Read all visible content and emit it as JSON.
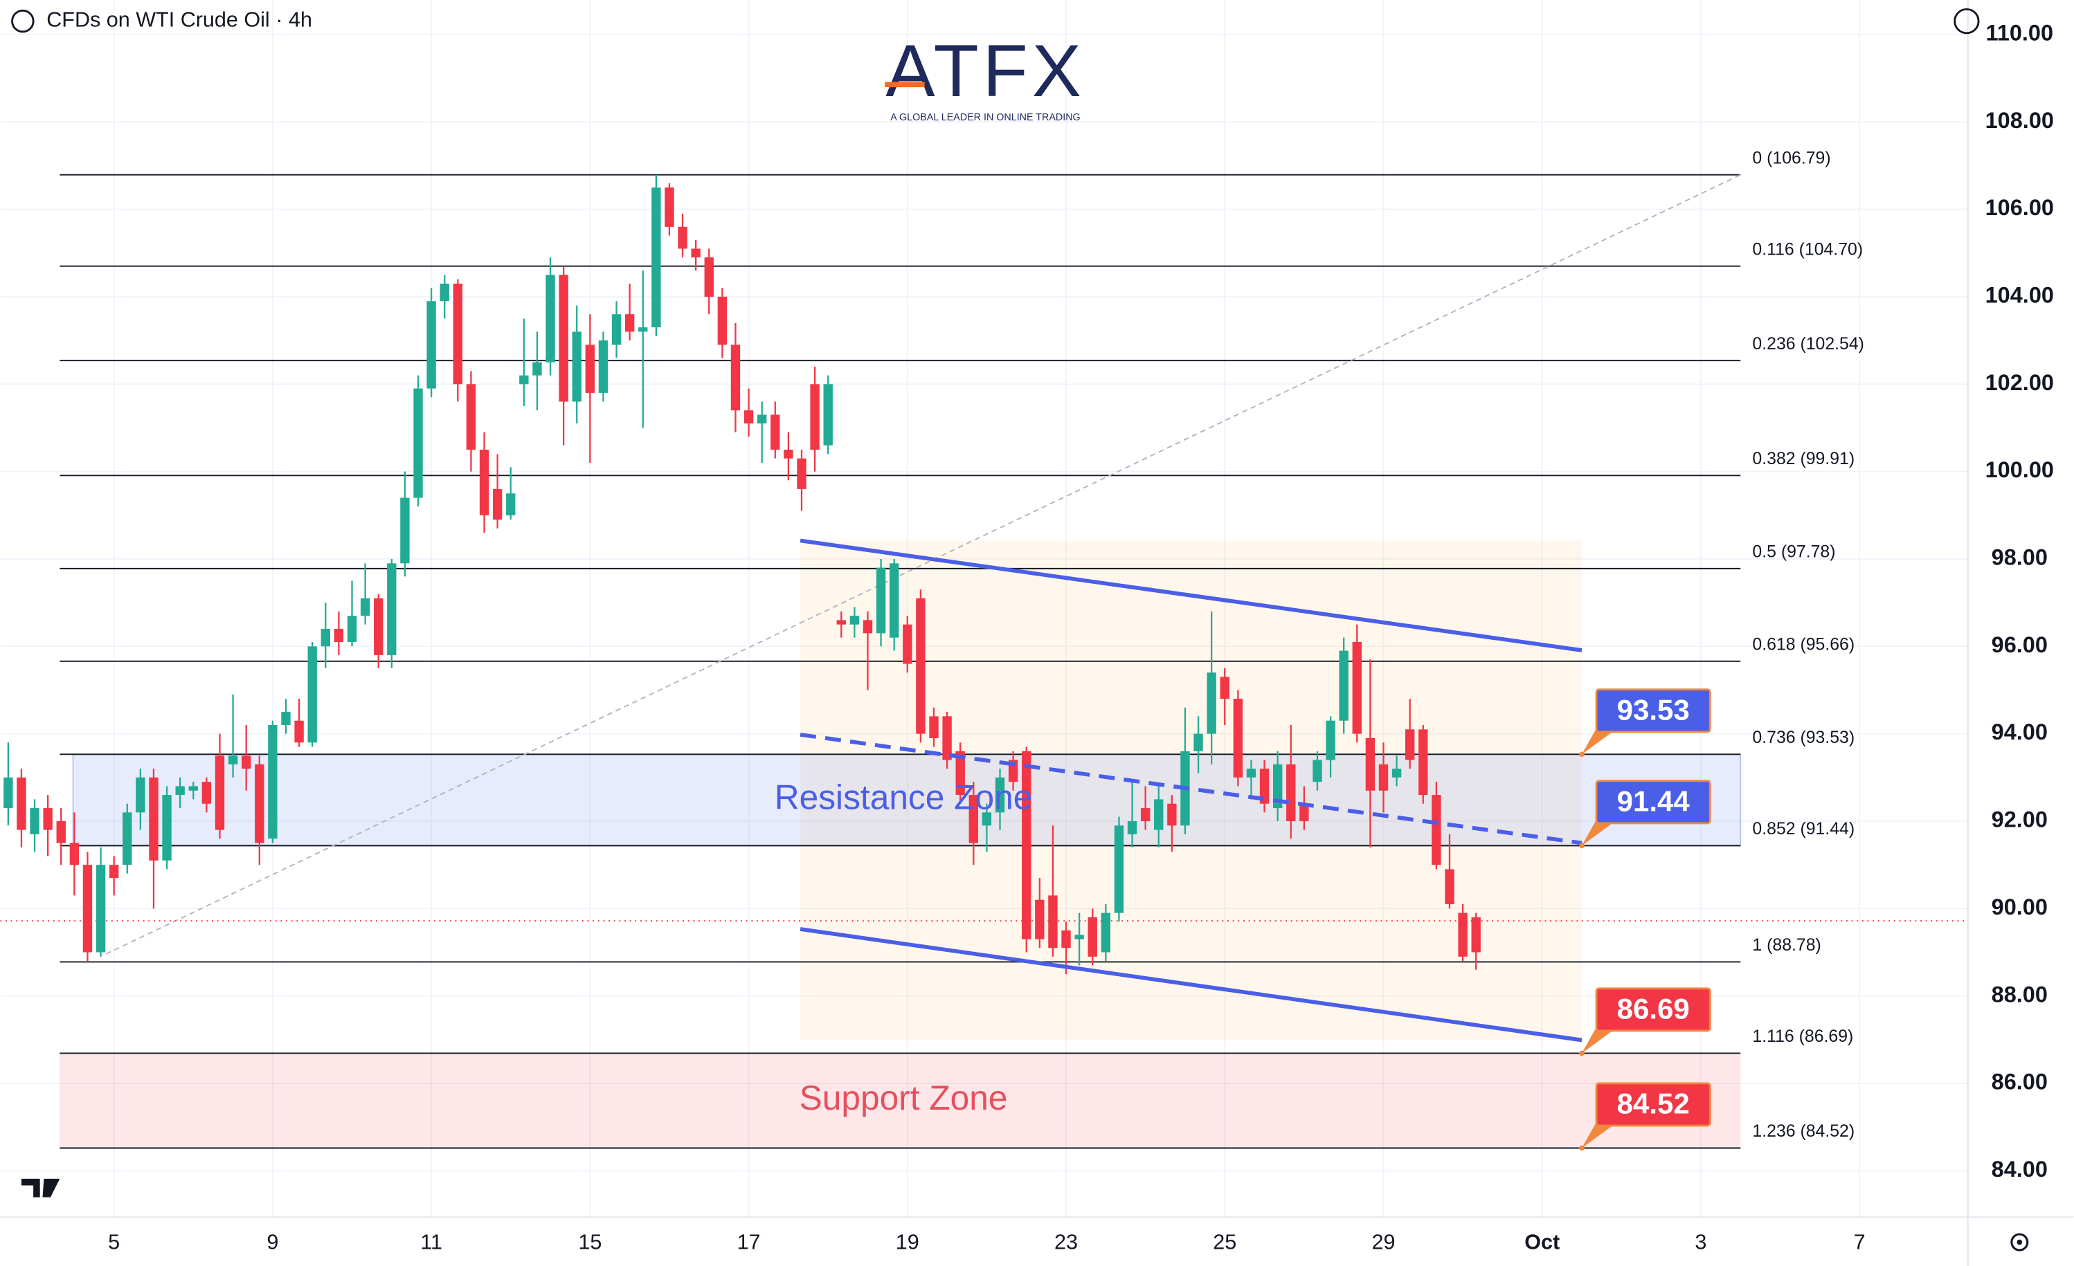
{
  "chart_data": {
    "type": "candlestick",
    "title": "CFDs on WTI Crude Oil · 4h",
    "watermark": "ATFX",
    "watermark_tagline": "A GLOBAL LEADER IN ONLINE TRADING",
    "up_color": "#22ab94",
    "down_color": "#f23645",
    "open": [
      92.3,
      93.0,
      91.7,
      92.3,
      92.0,
      91.5,
      91.0,
      89.0,
      91.0,
      91.0,
      92.2,
      93.0,
      91.1,
      92.6,
      92.7,
      92.9,
      93.5,
      93.3,
      93.5,
      93.3,
      91.6,
      94.2,
      94.3,
      93.8,
      96.0,
      96.4,
      96.1,
      96.7,
      97.1,
      95.8,
      97.9,
      99.4,
      101.9,
      103.9,
      104.3,
      102.0,
      100.5,
      99.6,
      99.0,
      102.0,
      102.2,
      102.5,
      104.5,
      101.6,
      102.9,
      101.8,
      102.9,
      103.6,
      103.2,
      103.3,
      106.5,
      105.6,
      105.1,
      104.9,
      104.0,
      102.9,
      101.4,
      101.1,
      101.3,
      100.5,
      100.3,
      102.0,
      100.6,
      96.6,
      96.5,
      96.6,
      96.3,
      96.2,
      96.5,
      97.1,
      94.4,
      94.4,
      93.6,
      92.6,
      91.9,
      92.2,
      93.4,
      93.6,
      90.2,
      90.3,
      89.5,
      89.3,
      89.8,
      89.0,
      89.9,
      91.7,
      92.3,
      91.8,
      92.4,
      91.9,
      93.6,
      94.0,
      95.3,
      94.8,
      93.0,
      93.2,
      92.3,
      93.3,
      92.4,
      92.9,
      93.4,
      94.3,
      96.1,
      93.9,
      93.3,
      93.0,
      94.1,
      94.1,
      92.6,
      90.9,
      89.9,
      89.8
    ],
    "high": [
      93.8,
      93.2,
      92.5,
      92.6,
      92.3,
      92.2,
      91.3,
      91.4,
      91.2,
      92.4,
      93.2,
      93.2,
      92.8,
      93.0,
      92.9,
      93.0,
      94.0,
      94.9,
      94.2,
      93.5,
      94.3,
      94.8,
      94.8,
      96.1,
      97.0,
      96.8,
      97.5,
      97.9,
      97.2,
      98.0,
      100.0,
      102.2,
      104.2,
      104.5,
      104.4,
      102.3,
      100.9,
      100.4,
      100.1,
      103.5,
      103.2,
      104.9,
      104.7,
      103.8,
      103.6,
      103.2,
      103.9,
      104.3,
      104.6,
      106.79,
      106.6,
      105.9,
      105.3,
      105.1,
      104.2,
      103.4,
      101.9,
      101.6,
      101.6,
      100.9,
      100.5,
      102.4,
      102.2,
      96.8,
      96.9,
      96.8,
      98.0,
      98.0,
      96.7,
      97.3,
      94.6,
      94.5,
      93.8,
      92.9,
      92.4,
      93.2,
      93.6,
      93.7,
      90.7,
      91.9,
      89.7,
      89.9,
      90.0,
      90.1,
      92.1,
      92.9,
      92.8,
      92.8,
      92.6,
      94.6,
      94.4,
      96.8,
      95.5,
      95.0,
      93.4,
      93.4,
      93.6,
      94.2,
      92.8,
      93.6,
      94.4,
      96.2,
      96.5,
      95.7,
      93.8,
      93.5,
      94.8,
      94.2,
      92.9,
      91.7,
      90.1,
      89.9
    ],
    "low": [
      91.9,
      91.4,
      91.3,
      91.2,
      91.0,
      90.3,
      88.8,
      88.9,
      90.3,
      90.8,
      91.8,
      90.0,
      90.9,
      92.3,
      92.5,
      92.2,
      91.6,
      93.0,
      92.7,
      91.0,
      91.5,
      94.0,
      93.7,
      93.7,
      95.5,
      95.8,
      96.0,
      96.5,
      95.5,
      95.5,
      97.6,
      99.2,
      101.7,
      103.5,
      101.6,
      100.0,
      98.6,
      98.7,
      98.9,
      101.5,
      101.4,
      102.2,
      100.6,
      101.1,
      100.2,
      101.6,
      102.6,
      103.0,
      101.0,
      103.1,
      105.4,
      104.9,
      104.6,
      103.6,
      102.6,
      100.9,
      100.8,
      100.2,
      100.3,
      99.8,
      99.1,
      100.0,
      100.4,
      96.2,
      96.2,
      95.0,
      96.0,
      95.9,
      95.4,
      93.8,
      93.7,
      93.2,
      92.4,
      91.0,
      91.3,
      91.8,
      92.7,
      89.0,
      89.1,
      88.9,
      88.5,
      88.7,
      88.7,
      88.8,
      89.7,
      91.4,
      91.8,
      91.4,
      91.3,
      91.7,
      93.1,
      93.3,
      94.2,
      92.8,
      92.5,
      92.2,
      92.0,
      91.6,
      91.8,
      92.7,
      93.0,
      94.0,
      93.8,
      91.4,
      92.2,
      92.8,
      93.2,
      92.4,
      90.9,
      90.0,
      88.8,
      88.6
    ],
    "close": [
      93.0,
      91.8,
      92.3,
      91.8,
      91.5,
      91.0,
      89.0,
      91.0,
      90.7,
      92.2,
      93.0,
      91.1,
      92.6,
      92.8,
      92.8,
      92.4,
      91.8,
      93.5,
      93.2,
      91.5,
      94.2,
      94.5,
      93.8,
      96.0,
      96.4,
      96.1,
      96.7,
      97.1,
      95.8,
      97.9,
      99.4,
      101.9,
      103.9,
      104.3,
      102.0,
      100.5,
      99.0,
      98.9,
      99.5,
      102.2,
      102.5,
      104.5,
      101.6,
      103.2,
      101.8,
      103.0,
      103.6,
      103.2,
      103.3,
      106.5,
      105.6,
      105.1,
      104.9,
      104.0,
      102.9,
      101.4,
      101.1,
      101.3,
      100.5,
      100.3,
      99.6,
      100.5,
      102.0,
      96.5,
      96.7,
      96.3,
      97.8,
      97.9,
      95.6,
      94.0,
      93.9,
      93.4,
      92.6,
      91.5,
      92.2,
      93.0,
      92.9,
      89.3,
      89.3,
      89.1,
      89.1,
      89.4,
      88.9,
      89.9,
      91.9,
      92.0,
      92.0,
      92.5,
      91.9,
      93.6,
      94.0,
      95.4,
      94.8,
      93.0,
      93.2,
      92.4,
      93.3,
      92.0,
      92.0,
      93.4,
      94.3,
      95.9,
      94.0,
      92.7,
      92.7,
      93.2,
      93.4,
      92.6,
      91.0,
      90.1,
      88.9,
      89.0
    ],
    "xlim": [
      -0.6,
      148.2
    ],
    "xticks": [
      {
        "value": 8,
        "label": "5"
      },
      {
        "value": 20,
        "label": "9"
      },
      {
        "value": 32,
        "label": "11"
      },
      {
        "value": 44,
        "label": "15"
      },
      {
        "value": 56,
        "label": "17"
      },
      {
        "value": 68,
        "label": "19"
      },
      {
        "value": 80,
        "label": "23"
      },
      {
        "value": 92,
        "label": "25"
      },
      {
        "value": 104,
        "label": "29"
      },
      {
        "value": 116,
        "label": "Oct"
      },
      {
        "value": 128,
        "label": "3"
      },
      {
        "value": 140,
        "label": "7"
      }
    ],
    "ylim": [
      82.94,
      110.79
    ],
    "yticks": [
      {
        "value": 84,
        "label": "84.00"
      },
      {
        "value": 86,
        "label": "86.00"
      },
      {
        "value": 88,
        "label": "88.00"
      },
      {
        "value": 90,
        "label": "90.00"
      },
      {
        "value": 92,
        "label": "92.00"
      },
      {
        "value": 94,
        "label": "94.00"
      },
      {
        "value": 96,
        "label": "96.00"
      },
      {
        "value": 98,
        "label": "98.00"
      },
      {
        "value": 100,
        "label": "100.00"
      },
      {
        "value": 102,
        "label": "102.00"
      },
      {
        "value": 104,
        "label": "104.00"
      },
      {
        "value": 106,
        "label": "106.00"
      },
      {
        "value": 108,
        "label": "108.00"
      },
      {
        "value": 110,
        "label": "110.00"
      }
    ],
    "grid": true,
    "fib_levels": [
      {
        "value": 106.79,
        "label": "0 (106.79)"
      },
      {
        "value": 104.7,
        "label": "0.116 (104.70)"
      },
      {
        "value": 102.54,
        "label": "0.236 (102.54)"
      },
      {
        "value": 99.91,
        "label": "0.382 (99.91)"
      },
      {
        "value": 97.78,
        "label": "0.5 (97.78)"
      },
      {
        "value": 95.66,
        "label": "0.618 (95.66)"
      },
      {
        "value": 93.53,
        "label": "0.736 (93.53)"
      },
      {
        "value": 91.44,
        "label": "0.852 (91.44)"
      },
      {
        "value": 88.78,
        "label": "1 (88.78)"
      },
      {
        "value": 86.69,
        "label": "1.116 (86.69)"
      },
      {
        "value": 84.52,
        "label": "1.236 (84.52)"
      }
    ],
    "zones": [
      {
        "label": "Resistance Zone",
        "top": 93.53,
        "bottom": 91.44,
        "fill": "rgba(120,150,240,0.18)",
        "color": "#4a5ee8"
      },
      {
        "label": "Support Zone",
        "top": 86.69,
        "bottom": 84.52,
        "fill": "rgba(242,54,69,0.12)",
        "color": "#e5505f"
      }
    ],
    "channel": {
      "upper": [
        98.42,
        95.91
      ],
      "middle": [
        93.98,
        91.5
      ],
      "lower": [
        89.53,
        86.99
      ],
      "color": "#4a5ee8"
    },
    "callouts": [
      {
        "value": 93.53,
        "color": "#4a5ee8"
      },
      {
        "value": 91.44,
        "color": "#4a5ee8"
      },
      {
        "value": 86.69,
        "color": "#f23645"
      },
      {
        "value": 84.52,
        "color": "#f23645"
      }
    ],
    "current_price": 89.72
  }
}
